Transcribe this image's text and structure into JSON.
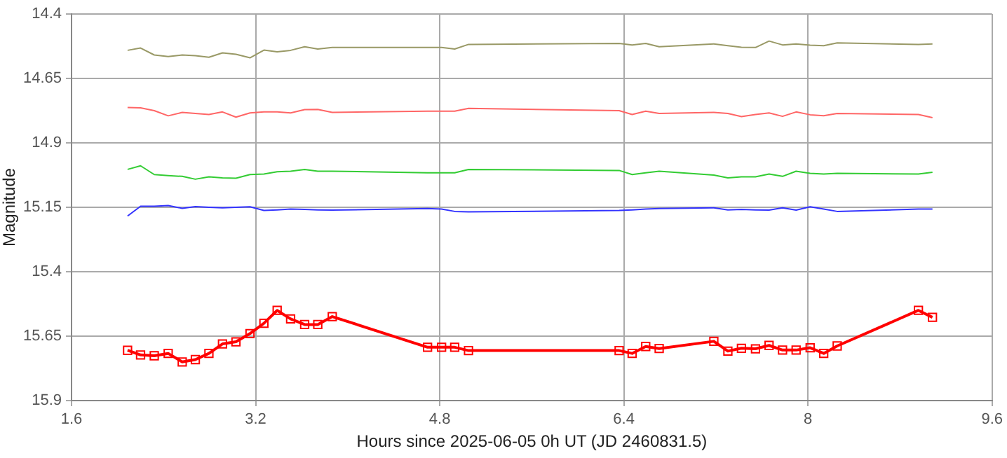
{
  "chart_data": {
    "type": "line",
    "xlabel": "Hours since 2025-06-05 0h UT (JD 2460831.5)",
    "ylabel": "Magnitude",
    "x": [
      2.087,
      2.2,
      2.319,
      2.44,
      2.562,
      2.676,
      2.794,
      2.912,
      3.029,
      3.151,
      3.272,
      3.387,
      3.504,
      3.626,
      3.74,
      3.866,
      4.694,
      4.816,
      4.93,
      5.05,
      6.359,
      6.472,
      6.59,
      6.707,
      7.182,
      7.304,
      7.422,
      7.544,
      7.662,
      7.779,
      7.897,
      8.019,
      8.137,
      8.254,
      8.96,
      9.082
    ],
    "series": [
      {
        "color": "#999966",
        "marker": "none",
        "values": [
          14.541,
          14.532,
          14.559,
          14.565,
          14.559,
          14.562,
          14.568,
          14.551,
          14.556,
          14.57,
          14.54,
          14.547,
          14.541,
          14.527,
          14.536,
          14.53,
          14.53,
          14.53,
          14.536,
          14.518,
          14.514,
          14.52,
          14.514,
          14.527,
          14.516,
          14.523,
          14.529,
          14.53,
          14.505,
          14.52,
          14.516,
          14.521,
          14.523,
          14.512,
          14.518,
          14.516
        ]
      },
      {
        "color": "#ff6666",
        "marker": "none",
        "values": [
          14.763,
          14.764,
          14.775,
          14.795,
          14.782,
          14.786,
          14.79,
          14.78,
          14.8,
          14.784,
          14.78,
          14.78,
          14.784,
          14.771,
          14.77,
          14.782,
          14.777,
          14.777,
          14.777,
          14.766,
          14.775,
          14.79,
          14.777,
          14.786,
          14.782,
          14.786,
          14.798,
          14.79,
          14.784,
          14.797,
          14.78,
          14.791,
          14.795,
          14.786,
          14.79,
          14.802
        ]
      },
      {
        "color": "#33cc33",
        "marker": "none",
        "values": [
          15.003,
          14.989,
          15.023,
          15.027,
          15.03,
          15.041,
          15.032,
          15.036,
          15.037,
          15.023,
          15.021,
          15.012,
          15.01,
          15.003,
          15.01,
          15.01,
          15.016,
          15.016,
          15.016,
          15.003,
          15.007,
          15.023,
          15.016,
          15.01,
          15.025,
          15.036,
          15.032,
          15.032,
          15.021,
          15.03,
          15.01,
          15.018,
          15.021,
          15.018,
          15.021,
          15.014
        ]
      },
      {
        "color": "#3333ff",
        "marker": "none",
        "values": [
          15.184,
          15.146,
          15.146,
          15.143,
          15.154,
          15.147,
          15.15,
          15.152,
          15.15,
          15.148,
          15.162,
          15.16,
          15.157,
          15.158,
          15.16,
          15.161,
          15.155,
          15.157,
          15.166,
          15.168,
          15.162,
          15.16,
          15.157,
          15.155,
          15.152,
          15.16,
          15.158,
          15.16,
          15.161,
          15.152,
          15.161,
          15.148,
          15.157,
          15.166,
          15.157,
          15.157
        ]
      },
      {
        "color": "#ff0000",
        "marker": "square",
        "values": [
          15.705,
          15.723,
          15.726,
          15.717,
          15.75,
          15.741,
          15.717,
          15.68,
          15.672,
          15.64,
          15.6,
          15.55,
          15.583,
          15.605,
          15.605,
          15.574,
          15.693,
          15.693,
          15.693,
          15.706,
          15.706,
          15.717,
          15.69,
          15.698,
          15.67,
          15.708,
          15.697,
          15.699,
          15.686,
          15.704,
          15.704,
          15.695,
          15.717,
          15.688,
          15.55,
          15.577
        ]
      }
    ],
    "xlim": [
      1.6,
      9.6
    ],
    "xticks": [
      1.6,
      3.2,
      4.8,
      6.4,
      8,
      9.6
    ],
    "ylim": [
      15.9,
      14.4
    ],
    "yticks": [
      14.4,
      14.65,
      14.9,
      15.15,
      15.4,
      15.65,
      15.9
    ],
    "grid": true,
    "legend": false,
    "line_style": "solid"
  }
}
